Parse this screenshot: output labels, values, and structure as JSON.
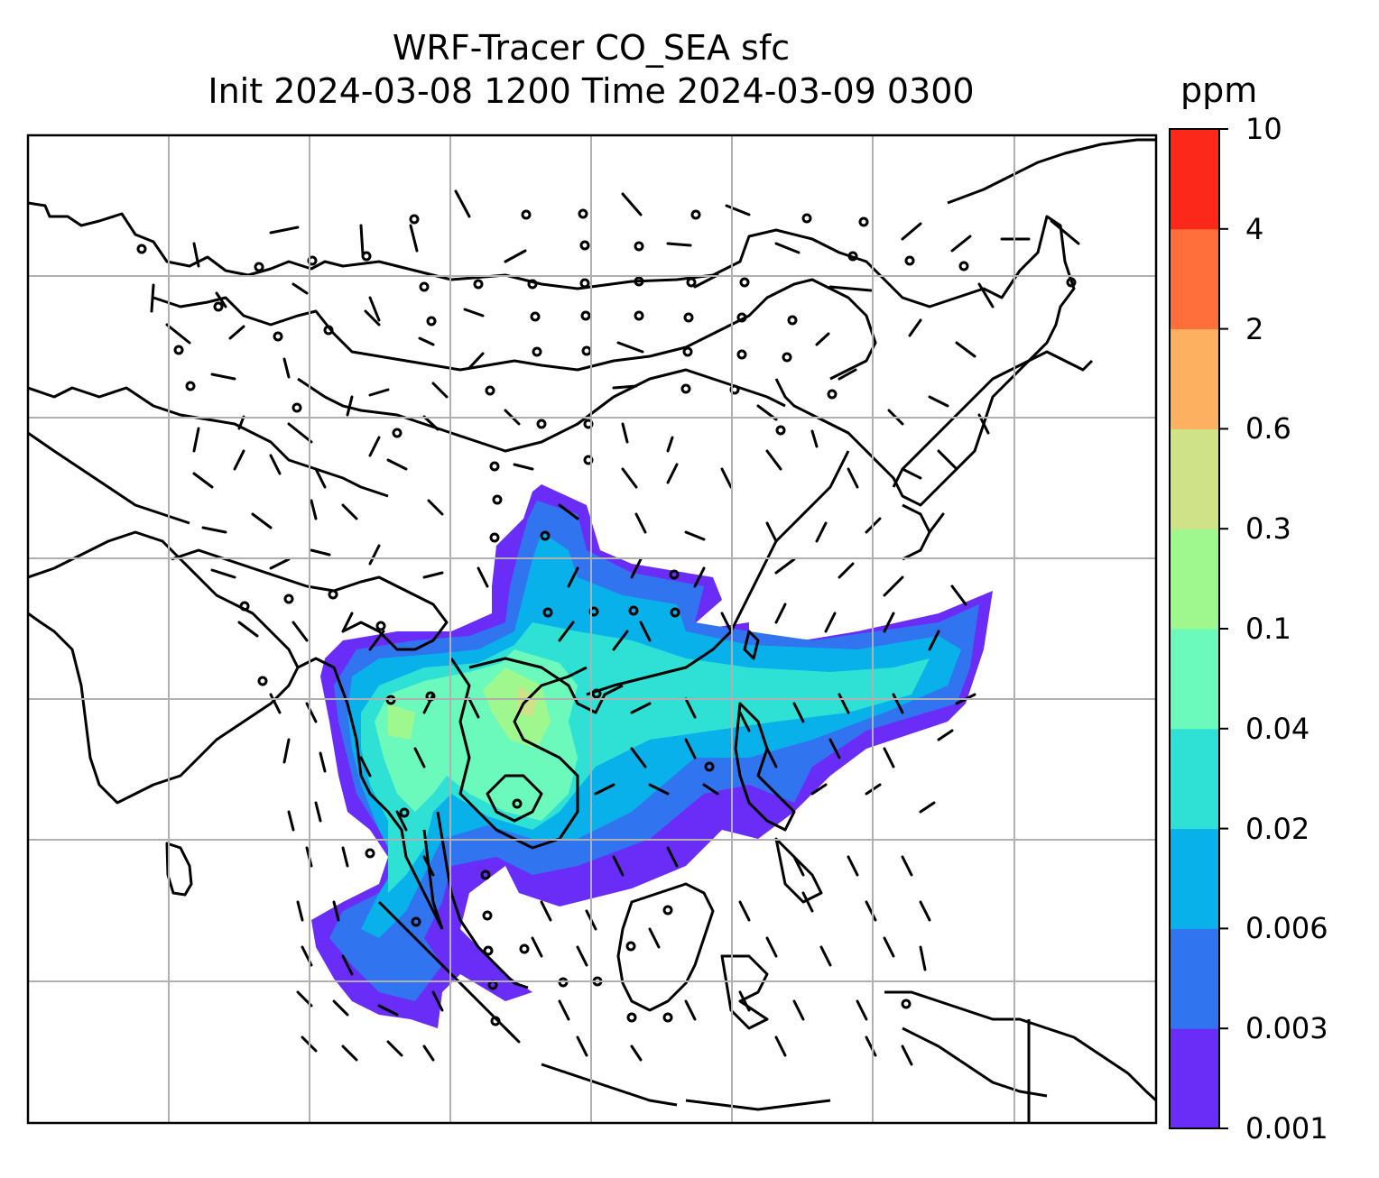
{
  "title_line1": "WRF-Tracer CO_SEA sfc",
  "title_line2": "Init 2024-03-08 1200 Time 2024-03-09 0300",
  "colorbar": {
    "unit": "ppm",
    "levels": [
      "0.001",
      "0.003",
      "0.006",
      "0.02",
      "0.04",
      "0.1",
      "0.3",
      "0.6",
      "2",
      "4",
      "10"
    ],
    "colors": [
      "#6a2df7",
      "#3174f0",
      "#08b1ea",
      "#2fe0d4",
      "#6cfabc",
      "#9ef88e",
      "#d0e287",
      "#fdb05f",
      "#fe6f3b",
      "#fc291a"
    ]
  },
  "map": {
    "field": "CO_SEA tracer surface concentration",
    "wind_barbs": true,
    "gridlines": true,
    "coastlines": true,
    "colors": {
      "coast": "#000000",
      "grid": "#b0b0b0",
      "frame": "#000000"
    }
  }
}
